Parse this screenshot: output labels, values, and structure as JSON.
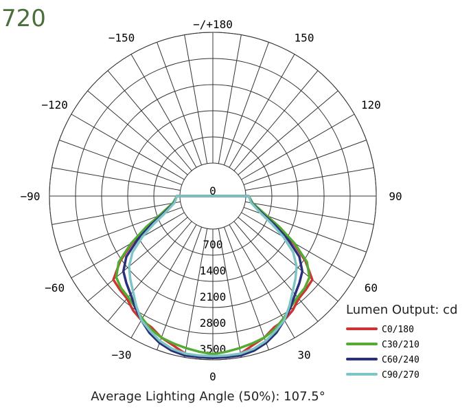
{
  "corner_text": "720",
  "footer_text": "Average Lighting Angle (50%): 107.5°",
  "chart_data": {
    "type": "polar",
    "legend_title": "Lumen Output: cd",
    "legend_position": "bottom-right",
    "radial_range": [
      0,
      3500
    ],
    "radial_ticks": [
      0,
      700,
      1400,
      2100,
      2800,
      3500
    ],
    "radial_tick_labels": [
      "0",
      "700",
      "1400",
      "2100",
      "2800",
      "3500"
    ],
    "angle_labels": [
      {
        "angle": 0,
        "label": "0"
      },
      {
        "angle": 30,
        "label": "30"
      },
      {
        "angle": -30,
        "label": "−30"
      },
      {
        "angle": 60,
        "label": "60"
      },
      {
        "angle": -60,
        "label": "−60"
      },
      {
        "angle": 90,
        "label": "90"
      },
      {
        "angle": -90,
        "label": "−90"
      },
      {
        "angle": 120,
        "label": "120"
      },
      {
        "angle": -120,
        "label": "−120"
      },
      {
        "angle": 150,
        "label": "150"
      },
      {
        "angle": -150,
        "label": "−150"
      },
      {
        "angle": 180,
        "label": "−/+180"
      }
    ],
    "series": [
      {
        "name": "C0/180",
        "color": "#cc3333",
        "angles": [
          -90,
          -80,
          -70,
          -65,
          -60,
          -55,
          -50,
          -45,
          -40,
          -35,
          -30,
          -25,
          -20,
          -15,
          -10,
          -5,
          0,
          5,
          10,
          15,
          20,
          25,
          30,
          35,
          40,
          45,
          50,
          55,
          60,
          65,
          70,
          80,
          90
        ],
        "values": [
          80,
          180,
          600,
          1050,
          1600,
          2150,
          2600,
          2650,
          2700,
          2850,
          2950,
          3000,
          3150,
          3250,
          3400,
          3450,
          3450,
          3450,
          3400,
          3250,
          3150,
          3000,
          2950,
          2850,
          2700,
          2650,
          2600,
          2150,
          1600,
          1050,
          600,
          180,
          80
        ]
      },
      {
        "name": "C30/210",
        "color": "#55aa33",
        "angles": [
          -90,
          -80,
          -70,
          -65,
          -60,
          -55,
          -50,
          -45,
          -40,
          -35,
          -30,
          -25,
          -20,
          -15,
          -10,
          -5,
          0,
          5,
          10,
          15,
          20,
          25,
          30,
          35,
          40,
          45,
          50,
          55,
          60,
          65,
          70,
          80,
          90
        ],
        "values": [
          80,
          200,
          650,
          1100,
          1650,
          2200,
          2500,
          2600,
          2650,
          2750,
          2900,
          3050,
          3150,
          3200,
          3250,
          3300,
          3350,
          3300,
          3250,
          3200,
          3150,
          3050,
          2900,
          2750,
          2650,
          2600,
          2500,
          2200,
          1650,
          1100,
          650,
          200,
          80
        ]
      },
      {
        "name": "C60/240",
        "color": "#2a2f7a",
        "angles": [
          -90,
          -80,
          -70,
          -65,
          -60,
          -55,
          -50,
          -45,
          -40,
          -35,
          -30,
          -25,
          -20,
          -15,
          -10,
          -5,
          0,
          5,
          10,
          15,
          20,
          25,
          30,
          35,
          40,
          45,
          50,
          55,
          60,
          65,
          70,
          80,
          90
        ],
        "values": [
          80,
          170,
          550,
          950,
          1450,
          1950,
          2250,
          2400,
          2550,
          2750,
          2950,
          3150,
          3300,
          3400,
          3450,
          3450,
          3450,
          3450,
          3450,
          3400,
          3300,
          3150,
          2950,
          2750,
          2550,
          2400,
          2250,
          1950,
          1450,
          950,
          550,
          170,
          80
        ]
      },
      {
        "name": "C90/270",
        "color": "#7fc4c4",
        "angles": [
          -90,
          -80,
          -70,
          -65,
          -60,
          -55,
          -50,
          -45,
          -40,
          -35,
          -30,
          -25,
          -20,
          -15,
          -10,
          -5,
          0,
          5,
          10,
          15,
          20,
          25,
          30,
          35,
          40,
          45,
          50,
          55,
          60,
          65,
          70,
          80,
          90
        ],
        "values": [
          80,
          160,
          500,
          850,
          1300,
          1750,
          2050,
          2250,
          2450,
          2700,
          2950,
          3100,
          3250,
          3350,
          3400,
          3400,
          3400,
          3400,
          3400,
          3350,
          3250,
          3100,
          2950,
          2700,
          2450,
          2250,
          2050,
          1750,
          1300,
          850,
          500,
          160,
          80
        ]
      }
    ]
  }
}
